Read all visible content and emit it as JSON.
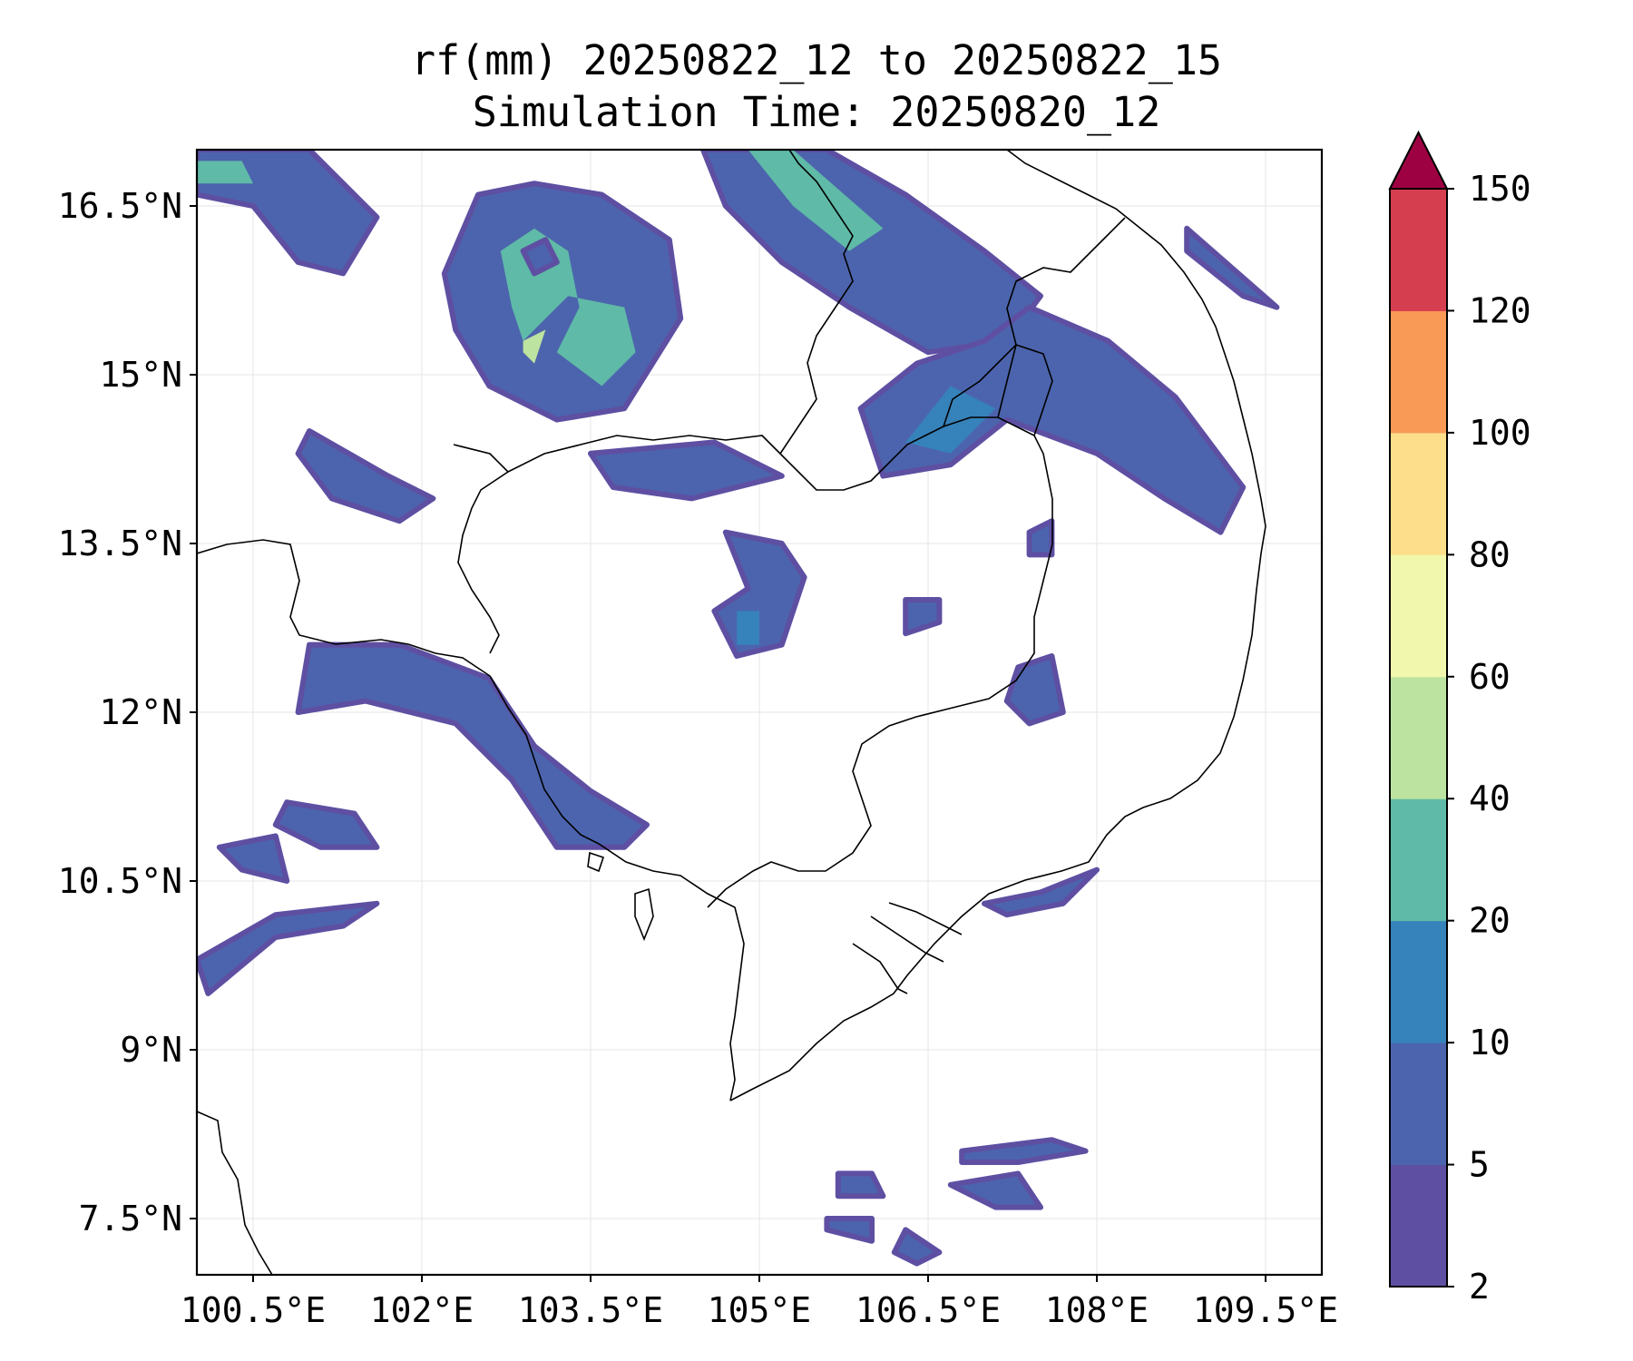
{
  "title": {
    "line1": "rf(mm) 20250822_12 to 20250822_15",
    "line2": "Simulation Time: 20250820_12"
  },
  "map": {
    "lon_range": [
      100.0,
      110.0
    ],
    "lat_range": [
      7.0,
      17.0
    ],
    "lon_ticks": [
      100.5,
      102.0,
      103.5,
      105.0,
      106.5,
      108.0,
      109.5
    ],
    "lon_tick_labels": [
      "100.5°E",
      "102°E",
      "103.5°E",
      "105°E",
      "106.5°E",
      "108°E",
      "109.5°E"
    ],
    "lat_ticks": [
      7.5,
      9.0,
      10.5,
      12.0,
      13.5,
      15.0,
      16.5
    ],
    "lat_tick_labels": [
      "7.5°N",
      "9°N",
      "10.5°N",
      "12°N",
      "13.5°N",
      "15°N",
      "16.5°N"
    ],
    "grid": true
  },
  "colorbar": {
    "levels": [
      2,
      5,
      10,
      20,
      40,
      60,
      80,
      100,
      120,
      150
    ],
    "labels": [
      "2",
      "5",
      "10",
      "20",
      "40",
      "60",
      "80",
      "100",
      "120",
      "150"
    ],
    "colors": [
      "#5e4fa2",
      "#4c64ad",
      "#3682ba",
      "#5fbaa7",
      "#bde3a0",
      "#f1f8ad",
      "#fddf8b",
      "#f99a57",
      "#d53e4f"
    ],
    "extend_color": "#9e0142",
    "extend": "max"
  },
  "rain_regions": [
    {
      "name": "nw-corner",
      "pts": [
        [
          100.0,
          17.0
        ],
        [
          101.0,
          17.0
        ],
        [
          101.6,
          16.4
        ],
        [
          101.3,
          15.9
        ],
        [
          100.9,
          16.0
        ],
        [
          100.5,
          16.5
        ],
        [
          100.0,
          16.6
        ]
      ],
      "core": [
        [
          100.0,
          16.9
        ],
        [
          100.4,
          16.9
        ],
        [
          100.5,
          16.7
        ],
        [
          100.0,
          16.7
        ]
      ],
      "core_lvl": 3
    },
    {
      "name": "north-mid",
      "pts": [
        [
          102.5,
          16.6
        ],
        [
          103.0,
          16.7
        ],
        [
          103.6,
          16.6
        ],
        [
          104.2,
          16.2
        ],
        [
          104.3,
          15.5
        ],
        [
          103.8,
          14.7
        ],
        [
          103.2,
          14.6
        ],
        [
          102.6,
          14.9
        ],
        [
          102.3,
          15.4
        ],
        [
          102.2,
          15.9
        ]
      ],
      "core": [
        [
          102.7,
          16.1
        ],
        [
          103.0,
          16.3
        ],
        [
          103.3,
          16.1
        ],
        [
          103.4,
          15.6
        ],
        [
          103.2,
          15.2
        ],
        [
          103.6,
          14.9
        ],
        [
          103.9,
          15.2
        ],
        [
          103.8,
          15.6
        ],
        [
          103.3,
          15.7
        ],
        [
          102.9,
          15.3
        ],
        [
          102.8,
          15.6
        ]
      ],
      "core_lvl": 3
    },
    {
      "name": "north-mid-peak",
      "pts": [
        [
          102.9,
          16.1
        ],
        [
          103.1,
          16.2
        ],
        [
          103.2,
          16.0
        ],
        [
          103.0,
          15.9
        ]
      ],
      "core": [
        [
          102.9,
          15.3
        ],
        [
          103.1,
          15.4
        ],
        [
          103.0,
          15.1
        ],
        [
          102.9,
          15.2
        ]
      ],
      "core_lvl": 4
    },
    {
      "name": "ne-band",
      "pts": [
        [
          104.5,
          17.0
        ],
        [
          105.6,
          17.0
        ],
        [
          106.3,
          16.6
        ],
        [
          107.0,
          16.1
        ],
        [
          107.5,
          15.7
        ],
        [
          107.2,
          15.3
        ],
        [
          106.5,
          15.2
        ],
        [
          105.8,
          15.6
        ],
        [
          105.2,
          16.0
        ],
        [
          104.7,
          16.5
        ]
      ],
      "core": [
        [
          104.9,
          17.0
        ],
        [
          105.3,
          17.0
        ],
        [
          106.1,
          16.3
        ],
        [
          105.8,
          16.1
        ],
        [
          105.3,
          16.5
        ]
      ],
      "core_lvl": 3
    },
    {
      "name": "east-band",
      "pts": [
        [
          107.4,
          15.6
        ],
        [
          108.1,
          15.3
        ],
        [
          108.7,
          14.8
        ],
        [
          109.3,
          14.0
        ],
        [
          109.1,
          13.6
        ],
        [
          108.6,
          13.9
        ],
        [
          108.0,
          14.3
        ],
        [
          107.2,
          14.6
        ],
        [
          106.7,
          14.2
        ],
        [
          106.1,
          14.1
        ],
        [
          105.9,
          14.7
        ],
        [
          106.4,
          15.1
        ],
        [
          107.0,
          15.3
        ]
      ],
      "core": [
        [
          106.3,
          14.4
        ],
        [
          106.7,
          14.9
        ],
        [
          107.1,
          14.7
        ],
        [
          106.7,
          14.3
        ]
      ],
      "core_lvl": 2
    },
    {
      "name": "se-streak",
      "pts": [
        [
          108.8,
          16.3
        ],
        [
          109.6,
          15.6
        ],
        [
          109.3,
          15.7
        ],
        [
          108.8,
          16.1
        ]
      ],
      "core": [],
      "core_lvl": 1
    },
    {
      "name": "west-blob",
      "pts": [
        [
          101.0,
          14.5
        ],
        [
          101.7,
          14.1
        ],
        [
          102.1,
          13.9
        ],
        [
          101.8,
          13.7
        ],
        [
          101.2,
          13.9
        ],
        [
          100.9,
          14.3
        ]
      ],
      "core": [],
      "core_lvl": 1
    },
    {
      "name": "mid-patch",
      "pts": [
        [
          103.5,
          14.3
        ],
        [
          104.6,
          14.4
        ],
        [
          105.2,
          14.1
        ],
        [
          104.4,
          13.9
        ],
        [
          103.7,
          14.0
        ]
      ],
      "core": [],
      "core_lvl": 1
    },
    {
      "name": "center-blob",
      "pts": [
        [
          104.7,
          13.6
        ],
        [
          105.2,
          13.5
        ],
        [
          105.4,
          13.2
        ],
        [
          105.2,
          12.6
        ],
        [
          104.8,
          12.5
        ],
        [
          104.6,
          12.9
        ],
        [
          104.9,
          13.1
        ]
      ],
      "core": [
        [
          104.8,
          12.9
        ],
        [
          105.0,
          12.9
        ],
        [
          105.0,
          12.6
        ],
        [
          104.8,
          12.6
        ]
      ],
      "core_lvl": 2
    },
    {
      "name": "gulf-coast",
      "pts": [
        [
          101.0,
          12.6
        ],
        [
          101.8,
          12.6
        ],
        [
          102.6,
          12.3
        ],
        [
          103.0,
          11.7
        ],
        [
          103.5,
          11.3
        ],
        [
          104.0,
          11.0
        ],
        [
          103.8,
          10.8
        ],
        [
          103.2,
          10.8
        ],
        [
          102.8,
          11.4
        ],
        [
          102.3,
          11.9
        ],
        [
          101.5,
          12.1
        ],
        [
          100.9,
          12.0
        ]
      ],
      "core": [],
      "core_lvl": 1
    },
    {
      "name": "sw-blob",
      "pts": [
        [
          100.8,
          11.2
        ],
        [
          101.4,
          11.1
        ],
        [
          101.6,
          10.8
        ],
        [
          101.1,
          10.8
        ],
        [
          100.7,
          11.0
        ]
      ],
      "core": [],
      "core_lvl": 1
    },
    {
      "name": "sw-streak",
      "pts": [
        [
          100.0,
          9.8
        ],
        [
          100.7,
          10.2
        ],
        [
          101.6,
          10.3
        ],
        [
          101.3,
          10.1
        ],
        [
          100.7,
          10.0
        ],
        [
          100.1,
          9.5
        ]
      ],
      "core": [],
      "core_lvl": 1
    },
    {
      "name": "sw-small",
      "pts": [
        [
          100.2,
          10.8
        ],
        [
          100.7,
          10.9
        ],
        [
          100.8,
          10.5
        ],
        [
          100.4,
          10.6
        ]
      ],
      "core": [],
      "core_lvl": 1
    },
    {
      "name": "e-patch",
      "pts": [
        [
          107.3,
          12.4
        ],
        [
          107.6,
          12.5
        ],
        [
          107.7,
          12.0
        ],
        [
          107.4,
          11.9
        ],
        [
          107.2,
          12.1
        ]
      ],
      "core": [],
      "core_lvl": 1
    },
    {
      "name": "mekong-delta-coast",
      "pts": [
        [
          107.0,
          10.3
        ],
        [
          107.5,
          10.4
        ],
        [
          108.0,
          10.6
        ],
        [
          107.7,
          10.3
        ],
        [
          107.2,
          10.2
        ]
      ],
      "core": [],
      "core_lvl": 1
    },
    {
      "name": "south-sea-1",
      "pts": [
        [
          106.8,
          8.1
        ],
        [
          107.6,
          8.2
        ],
        [
          107.9,
          8.1
        ],
        [
          107.3,
          8.0
        ],
        [
          106.8,
          8.0
        ]
      ],
      "core": [],
      "core_lvl": 1
    },
    {
      "name": "south-sea-2",
      "pts": [
        [
          106.7,
          7.8
        ],
        [
          107.3,
          7.9
        ],
        [
          107.5,
          7.6
        ],
        [
          107.1,
          7.6
        ]
      ],
      "core": [],
      "core_lvl": 1
    },
    {
      "name": "south-sea-3",
      "pts": [
        [
          105.7,
          7.9
        ],
        [
          106.0,
          7.9
        ],
        [
          106.1,
          7.7
        ],
        [
          105.7,
          7.7
        ]
      ],
      "core": [],
      "core_lvl": 1
    },
    {
      "name": "south-sea-4",
      "pts": [
        [
          105.6,
          7.5
        ],
        [
          106.0,
          7.5
        ],
        [
          106.0,
          7.3
        ],
        [
          105.6,
          7.4
        ]
      ],
      "core": [],
      "core_lvl": 1
    },
    {
      "name": "south-sea-5",
      "pts": [
        [
          106.3,
          7.4
        ],
        [
          106.6,
          7.2
        ],
        [
          106.4,
          7.1
        ],
        [
          106.2,
          7.2
        ]
      ],
      "core": [],
      "core_lvl": 1
    },
    {
      "name": "mid-small-1",
      "pts": [
        [
          106.3,
          13.0
        ],
        [
          106.6,
          13.0
        ],
        [
          106.6,
          12.8
        ],
        [
          106.3,
          12.7
        ]
      ],
      "core": [],
      "core_lvl": 1
    },
    {
      "name": "mid-small-2",
      "pts": [
        [
          107.4,
          13.6
        ],
        [
          107.6,
          13.7
        ],
        [
          107.6,
          13.4
        ],
        [
          107.4,
          13.4
        ]
      ],
      "core": [],
      "core_lvl": 1
    }
  ]
}
